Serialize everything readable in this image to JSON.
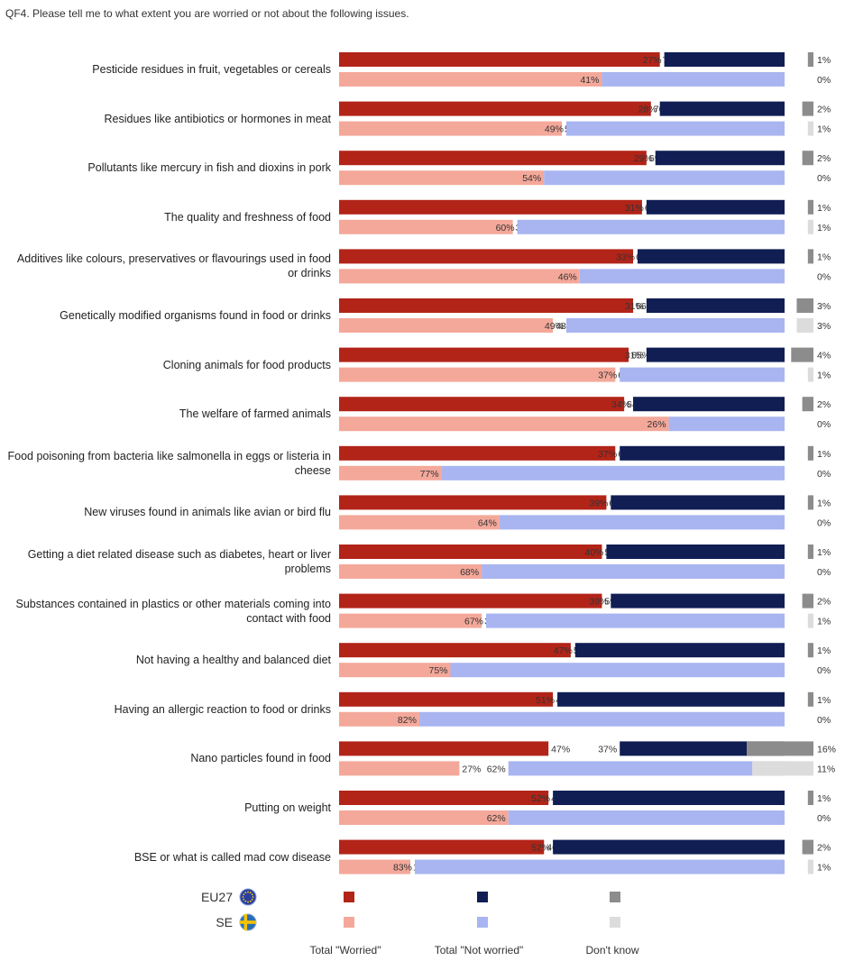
{
  "question": "QF4. Please tell me to what extent you are worried or not about the following issues.",
  "chart_data": {
    "type": "bar",
    "stacked": true,
    "orientation": "horizontal",
    "categories": [
      "Pesticide residues in fruit, vegetables or cereals",
      "Residues like antibiotics or hormones in meat",
      "Pollutants like mercury in fish and dioxins in pork",
      "The quality and freshness of food",
      "Additives like colours, preservatives or flavourings used in food or drinks",
      "Genetically modified organisms found in food or drinks",
      "Cloning animals for food products",
      "The welfare of farmed animals",
      "Food poisoning from bacteria like salmonella in eggs or listeria in cheese",
      "New viruses found in animals like avian or bird flu",
      "Getting a diet related disease such as diabetes, heart or liver problems",
      "Substances contained in plastics or other materials coming into contact with food",
      "Not having a healthy and balanced diet",
      "Having an allergic reaction to food or drinks",
      "Nano particles found in food",
      "Putting on weight",
      "BSE or what is called mad cow disease"
    ],
    "groups": [
      "EU27",
      "SE"
    ],
    "series": [
      {
        "name": "Total \"Worried\"",
        "colors": {
          "EU27": "#b22418",
          "SE": "#f4a89a"
        }
      },
      {
        "name": "Total \"Not worried\"",
        "colors": {
          "EU27": "#101e54",
          "SE": "#a9b5f0"
        }
      },
      {
        "name": "Don't know",
        "colors": {
          "EU27": "#8c8c8c",
          "SE": "#dcdcdc"
        }
      }
    ],
    "values": {
      "EU27": [
        [
          72,
          27,
          1
        ],
        [
          70,
          28,
          2
        ],
        [
          69,
          29,
          2
        ],
        [
          68,
          31,
          1
        ],
        [
          66,
          33,
          1
        ],
        [
          66,
          31,
          3
        ],
        [
          65,
          31,
          4
        ],
        [
          64,
          34,
          2
        ],
        [
          62,
          37,
          1
        ],
        [
          60,
          39,
          1
        ],
        [
          59,
          40,
          1
        ],
        [
          59,
          39,
          2
        ],
        [
          52,
          47,
          1
        ],
        [
          48,
          51,
          1
        ],
        [
          47,
          37,
          16
        ],
        [
          47,
          52,
          1
        ],
        [
          46,
          52,
          2
        ]
      ],
      "SE": [
        [
          59,
          41,
          0
        ],
        [
          50,
          49,
          1
        ],
        [
          46,
          54,
          0
        ],
        [
          39,
          60,
          1
        ],
        [
          54,
          46,
          0
        ],
        [
          48,
          49,
          3
        ],
        [
          62,
          37,
          1
        ],
        [
          74,
          26,
          0
        ],
        [
          23,
          77,
          0
        ],
        [
          36,
          64,
          0
        ],
        [
          32,
          68,
          0
        ],
        [
          32,
          67,
          1
        ],
        [
          25,
          75,
          0
        ],
        [
          18,
          82,
          0
        ],
        [
          27,
          62,
          11
        ],
        [
          38,
          62,
          0
        ],
        [
          16,
          83,
          1
        ]
      ]
    },
    "unit": "%",
    "legend": {
      "position": "bottom",
      "group_labels": [
        "EU27",
        "SE"
      ],
      "group_icons": [
        "eu-flag-icon",
        "sweden-flag-icon"
      ]
    }
  }
}
